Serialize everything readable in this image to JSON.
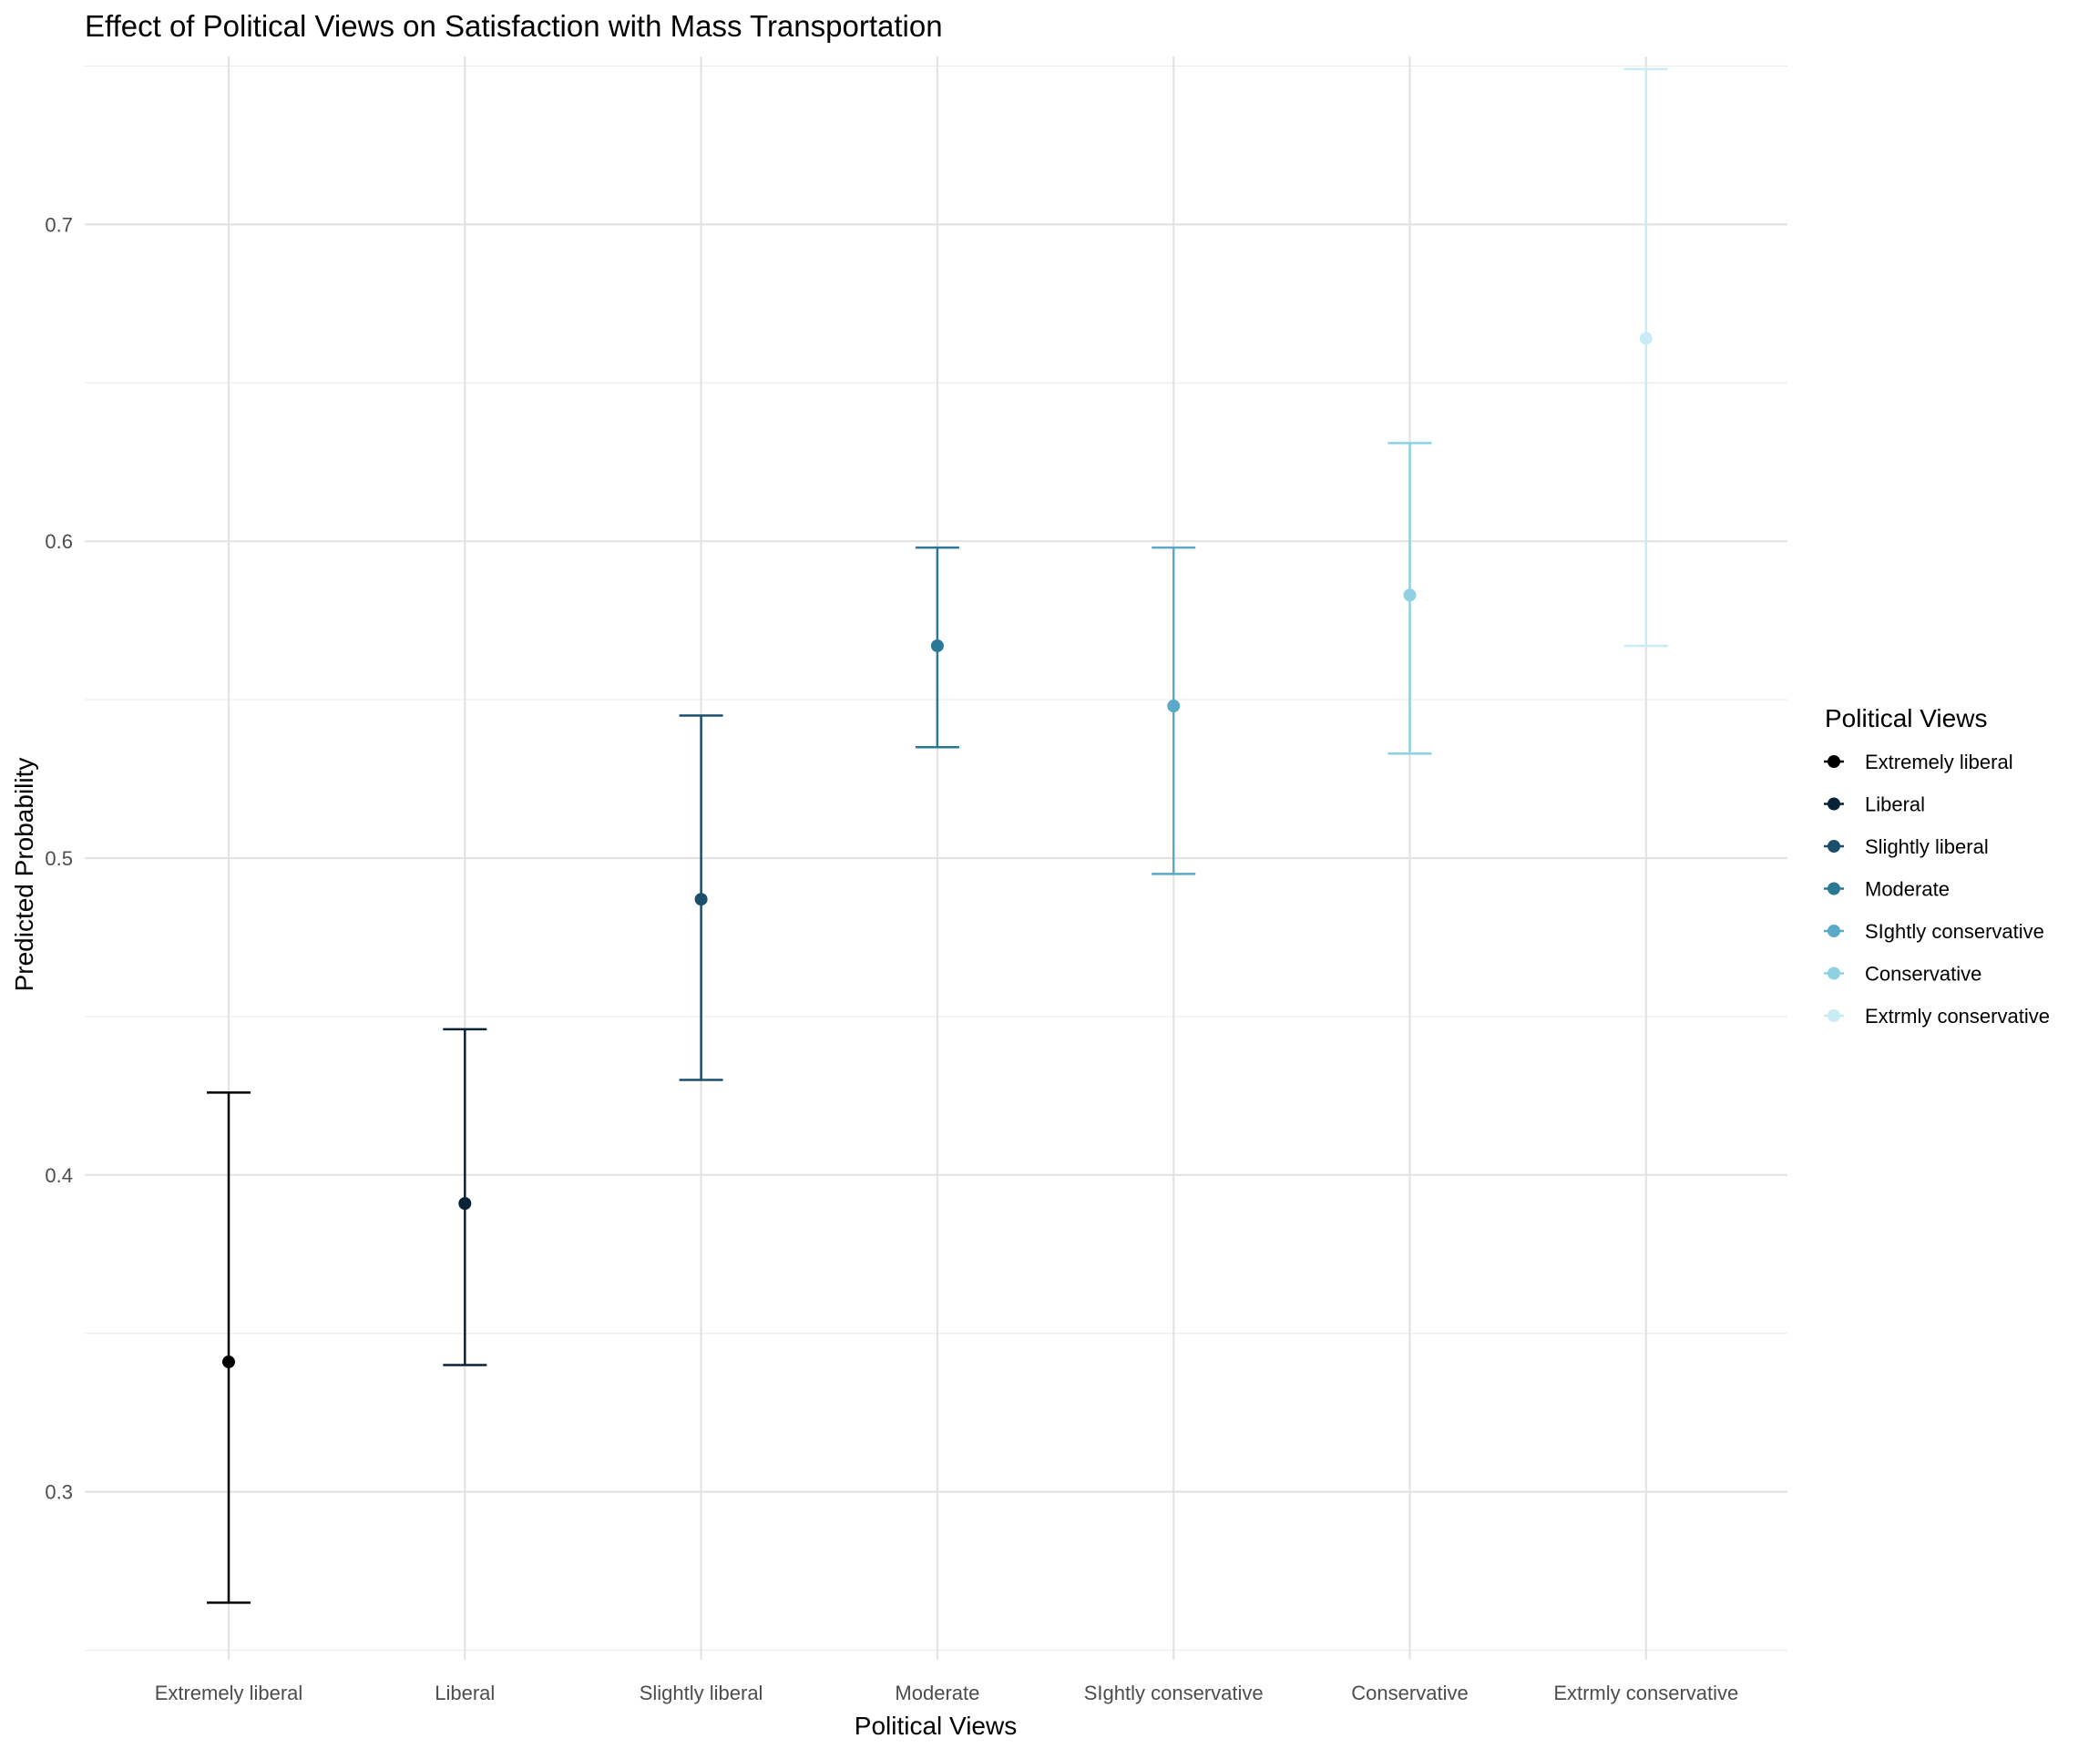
{
  "chart_data": {
    "type": "scatter",
    "title": "Effect of Political Views on Satisfaction with Mass Transportation",
    "xlabel": "Political Views",
    "ylabel": "Predicted Probability",
    "categories": [
      "Extremely liberal",
      "Liberal",
      "Slightly liberal",
      "Moderate",
      "SIghtly conservative",
      "Conservative",
      "Extrmly conservative"
    ],
    "series": [
      {
        "name": "Extremely liberal",
        "value": 0.341,
        "lower": 0.265,
        "upper": 0.426,
        "color": "#000000"
      },
      {
        "name": "Liberal",
        "value": 0.391,
        "lower": 0.34,
        "upper": 0.446,
        "color": "#0a2236"
      },
      {
        "name": "Slightly liberal",
        "value": 0.487,
        "lower": 0.43,
        "upper": 0.545,
        "color": "#1b4f6b"
      },
      {
        "name": "Moderate",
        "value": 0.567,
        "lower": 0.535,
        "upper": 0.598,
        "color": "#2b7896"
      },
      {
        "name": "SIghtly conservative",
        "value": 0.548,
        "lower": 0.495,
        "upper": 0.598,
        "color": "#5aa9c8"
      },
      {
        "name": "Conservative",
        "value": 0.583,
        "lower": 0.533,
        "upper": 0.631,
        "color": "#8fd0e2"
      },
      {
        "name": "Extrmly conservative",
        "value": 0.664,
        "lower": 0.567,
        "upper": 0.749,
        "color": "#c9ebf6"
      }
    ],
    "ylim": [
      0.25,
      0.755
    ],
    "y_major_ticks": [
      0.3,
      0.4,
      0.5,
      0.6,
      0.7
    ],
    "y_tick_labels": [
      "0.3",
      "0.4",
      "0.5",
      "0.6",
      "0.7"
    ],
    "y_minor_ticks": [
      0.25,
      0.35,
      0.45,
      0.55,
      0.65,
      0.75
    ],
    "grid": true,
    "legend": {
      "title": "Political Views",
      "placement": "right"
    }
  }
}
